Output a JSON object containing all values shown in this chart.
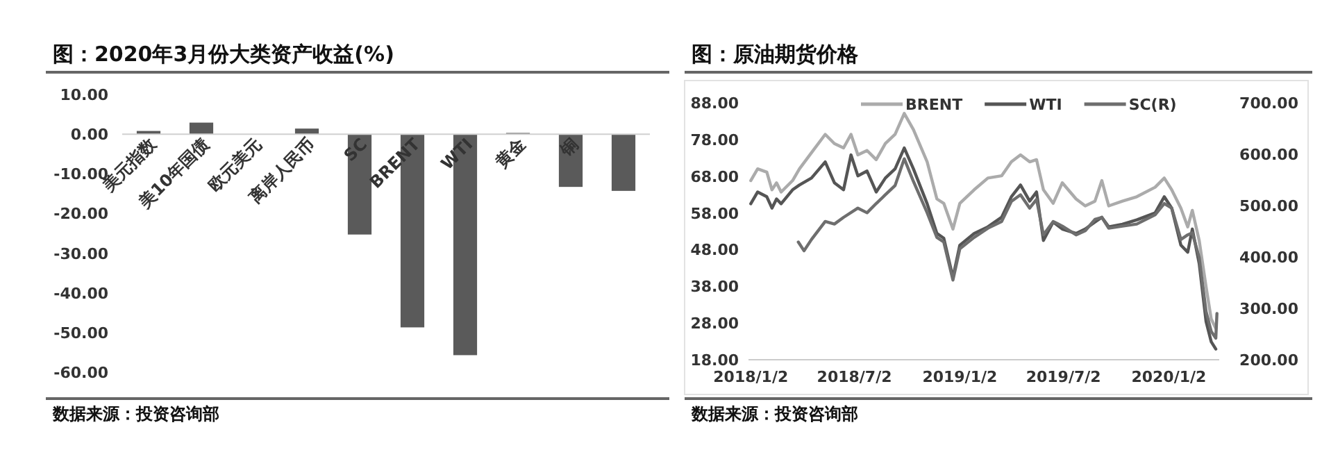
{
  "chart_data": [
    {
      "type": "bar",
      "title": "图：2020年3月份大类资产收益(%)",
      "categories": [
        "美元指数",
        "美10年国债",
        "欧元美元",
        "离岸人民币",
        "SC",
        "BRENT",
        "WTI",
        "黄金",
        "铜",
        null
      ],
      "values": [
        0.8,
        2.9,
        0,
        1.4,
        -25.3,
        -48.7,
        -55.7,
        0.3,
        -13.3,
        -14.3
      ],
      "color": "#5a5a5a",
      "ylim": [
        -60,
        10
      ],
      "yticks": [
        {
          "value": 10,
          "label": "10.00"
        },
        {
          "value": 0,
          "label": "0.00"
        },
        {
          "value": -10,
          "label": "-10.00"
        },
        {
          "value": -20,
          "label": "-20.00"
        },
        {
          "value": -30,
          "label": "-30.00"
        },
        {
          "value": -40,
          "label": "-40.00"
        },
        {
          "value": -50,
          "label": "-50.00"
        },
        {
          "value": -60,
          "label": "-60.00"
        }
      ],
      "annotations": [
        "数据来源：投资咨询部"
      ]
    },
    {
      "type": "line",
      "title": "图：原油期货价格",
      "x": [
        "2018-01-02",
        "2018-01-14",
        "2018-01-30",
        "2018-02-08",
        "2018-02-16",
        "2018-02-24",
        "2018-03-16",
        "2018-03-28",
        "2018-04-18",
        "2018-05-12",
        "2018-05-28",
        "2018-06-13",
        "2018-06-26",
        "2018-07-08",
        "2018-07-24",
        "2018-08-09",
        "2018-08-25",
        "2018-09-11",
        "2018-09-27",
        "2018-10-13",
        "2018-11-06",
        "2018-11-23",
        "2018-12-05",
        "2018-12-21",
        "2019-01-02",
        "2019-01-27",
        "2019-02-20",
        "2019-03-16",
        "2019-04-02",
        "2019-04-18",
        "2019-05-04",
        "2019-05-16",
        "2019-05-28",
        "2019-06-14",
        "2019-06-30",
        "2019-07-24",
        "2019-08-09",
        "2019-08-26",
        "2019-09-07",
        "2019-09-19",
        "2019-10-13",
        "2019-11-07",
        "2019-12-09",
        "2019-12-25",
        "2020-01-07",
        "2020-01-23",
        "2020-02-04",
        "2020-02-12",
        "2020-02-24",
        "2020-03-07",
        "2020-03-16",
        "2020-03-24"
      ],
      "series": [
        {
          "name": "BRENT",
          "color": "#ababab",
          "values": [
            66.8,
            70.0,
            69.1,
            64.3,
            66.2,
            63.7,
            66.8,
            70.0,
            74.4,
            79.4,
            76.9,
            75.7,
            79.4,
            73.8,
            75.0,
            72.5,
            76.9,
            79.4,
            85.1,
            80.7,
            71.9,
            61.8,
            60.6,
            53.6,
            60.6,
            64.3,
            67.5,
            68.1,
            71.9,
            73.8,
            71.9,
            72.5,
            64.3,
            60.6,
            66.2,
            61.8,
            59.9,
            61.2,
            66.8,
            59.9,
            61.2,
            62.4,
            65.0,
            67.5,
            64.3,
            59.3,
            54.2,
            58.7,
            50.5,
            37.9,
            29.1,
            26.5
          ]
        },
        {
          "name": "WTI",
          "color": "#555555",
          "values": [
            60.5,
            63.7,
            62.4,
            59.3,
            61.8,
            60.5,
            64.3,
            65.6,
            67.5,
            71.9,
            66.2,
            64.3,
            73.8,
            68.1,
            69.4,
            63.7,
            67.5,
            70.0,
            75.7,
            70.0,
            60.5,
            52.4,
            51.1,
            40.4,
            49.2,
            52.4,
            54.2,
            56.8,
            62.4,
            65.6,
            61.2,
            63.7,
            50.5,
            55.5,
            53.6,
            52.4,
            53.6,
            55.5,
            56.8,
            54.2,
            54.9,
            56.1,
            58.0,
            62.4,
            59.3,
            49.2,
            47.3,
            53.6,
            44.2,
            28.4,
            22.9,
            20.9
          ]
        },
        {
          "name": "SC(R)",
          "color": "#6e6e6e",
          "axis": "y2",
          "x": [
            "2018-03-26",
            "2018-04-05",
            "2018-04-18",
            "2018-05-12",
            "2018-05-28",
            "2018-06-13",
            "2018-07-08",
            "2018-07-24",
            "2018-08-09",
            "2018-08-25",
            "2018-09-11",
            "2018-09-27",
            "2018-10-13",
            "2018-11-06",
            "2018-11-23",
            "2018-12-05",
            "2018-12-21",
            "2019-01-02",
            "2019-01-27",
            "2019-02-20",
            "2019-03-16",
            "2019-04-02",
            "2019-04-18",
            "2019-05-04",
            "2019-05-16",
            "2019-05-28",
            "2019-06-14",
            "2019-06-30",
            "2019-07-24",
            "2019-08-09",
            "2019-08-26",
            "2019-09-07",
            "2019-09-19",
            "2019-10-13",
            "2019-11-07",
            "2019-12-09",
            "2019-12-25",
            "2020-01-07",
            "2020-01-23",
            "2020-02-04",
            "2020-02-12",
            "2020-02-24",
            "2020-03-07",
            "2020-03-16",
            "2020-03-24",
            "2020-03-26"
          ],
          "values": [
            429,
            412,
            434,
            469,
            464,
            477,
            495,
            486,
            504,
            521,
            539,
            591,
            547,
            486,
            438,
            429,
            355,
            416,
            438,
            456,
            469,
            508,
            521,
            495,
            512,
            443,
            469,
            460,
            443,
            451,
            473,
            477,
            456,
            460,
            464,
            482,
            504,
            495,
            434,
            443,
            447,
            399,
            294,
            255,
            242,
            290
          ]
        }
      ],
      "xlim": [
        "2017-12-29",
        "2020-03-30"
      ],
      "xticks": [
        {
          "value": "2018-01-02",
          "label": "2018/1/2"
        },
        {
          "value": "2018-07-02",
          "label": "2018/7/2"
        },
        {
          "value": "2019-01-02",
          "label": "2019/1/2"
        },
        {
          "value": "2019-07-02",
          "label": "2019/7/2"
        },
        {
          "value": "2020-01-02",
          "label": "2020/1/2"
        }
      ],
      "ylim": [
        18,
        88
      ],
      "yticks": [
        {
          "value": 18,
          "label": "18.00"
        },
        {
          "value": 28,
          "label": "28.00"
        },
        {
          "value": 38,
          "label": "38.00"
        },
        {
          "value": 48,
          "label": "48.00"
        },
        {
          "value": 58,
          "label": "58.00"
        },
        {
          "value": 68,
          "label": "68.00"
        },
        {
          "value": 78,
          "label": "78.00"
        },
        {
          "value": 88,
          "label": "88.00"
        }
      ],
      "y2lim": [
        200,
        700
      ],
      "y2ticks": [
        {
          "value": 200,
          "label": "200.00"
        },
        {
          "value": 300,
          "label": "300.00"
        },
        {
          "value": 400,
          "label": "400.00"
        },
        {
          "value": 500,
          "label": "500.00"
        },
        {
          "value": 600,
          "label": "600.00"
        },
        {
          "value": 700,
          "label": "700.00"
        }
      ],
      "legend": "top",
      "annotations": [
        "数据来源：投资咨询部"
      ]
    }
  ]
}
